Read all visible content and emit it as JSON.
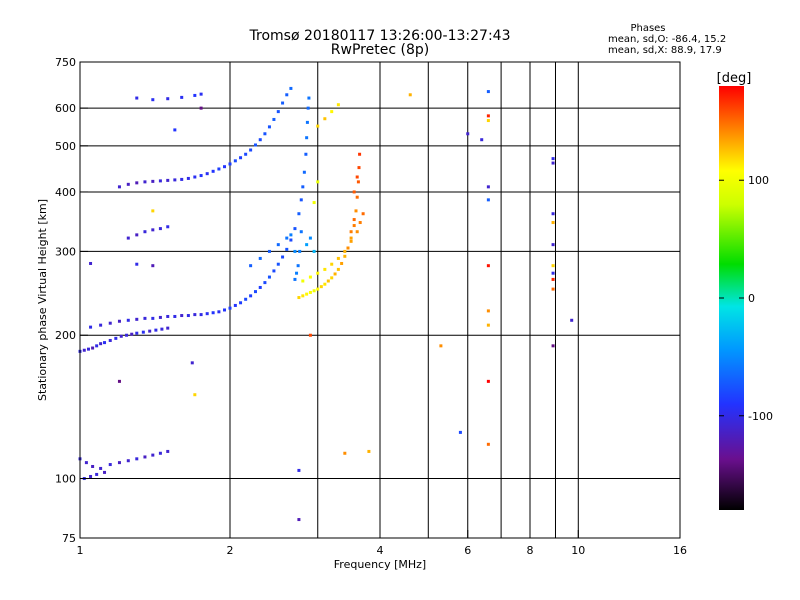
{
  "chart_data": {
    "type": "scatter",
    "title": "Tromsø 20180117 13:26:00-13:27:43",
    "subtitle": "RwPretec (8p)",
    "xlabel": "Frequency [MHz]",
    "ylabel": "Stationary phase Virtual Height [km]",
    "xscale": "log",
    "yscale": "log",
    "xlim": [
      1,
      16
    ],
    "ylim": [
      75,
      750
    ],
    "xticks": [
      {
        "value": 1,
        "label": "1"
      },
      {
        "value": 2,
        "label": "2"
      },
      {
        "value": 4,
        "label": "4"
      },
      {
        "value": 6,
        "label": "6"
      },
      {
        "value": 8,
        "label": "8"
      },
      {
        "value": 10,
        "label": "10"
      },
      {
        "value": 16,
        "label": "16"
      }
    ],
    "xgrid": [
      2,
      3,
      4,
      5,
      6,
      7,
      8,
      9,
      10
    ],
    "yticks": [
      {
        "value": 75,
        "label": "75"
      },
      {
        "value": 100,
        "label": "100"
      },
      {
        "value": 200,
        "label": "200"
      },
      {
        "value": 300,
        "label": "300"
      },
      {
        "value": 400,
        "label": "400"
      },
      {
        "value": 500,
        "label": "500"
      },
      {
        "value": 600,
        "label": "600"
      },
      {
        "value": 750,
        "label": "750"
      }
    ],
    "ygrid": [
      100,
      200,
      300,
      400,
      500,
      600
    ],
    "grid": true,
    "legend": {
      "title": "Phases",
      "line1": "mean, sd,O:  -86.4, 15.2",
      "line2": "mean, sd,X:   88.9, 17.9"
    },
    "colorbar": {
      "label": "[deg]",
      "min": -180,
      "max": 180,
      "ticks": [
        {
          "value": 100,
          "label": "100"
        },
        {
          "value": 0,
          "label": "0"
        },
        {
          "value": -100,
          "label": "-100"
        }
      ]
    },
    "series": [
      {
        "points": [
          [
            1.0,
            185,
            -100
          ],
          [
            1.02,
            186,
            -110
          ],
          [
            1.04,
            187,
            -105
          ],
          [
            1.06,
            188,
            -120
          ],
          [
            1.08,
            190,
            -100
          ],
          [
            1.1,
            192,
            -110
          ],
          [
            1.12,
            193,
            -95
          ],
          [
            1.15,
            195,
            -105
          ],
          [
            1.18,
            197,
            -100
          ],
          [
            1.21,
            199,
            -110
          ],
          [
            1.24,
            200,
            -105
          ],
          [
            1.27,
            201,
            -115
          ],
          [
            1.3,
            202,
            -100
          ],
          [
            1.34,
            203,
            -95
          ],
          [
            1.38,
            204,
            -110
          ],
          [
            1.42,
            205,
            -100
          ],
          [
            1.46,
            206,
            -105
          ],
          [
            1.5,
            207,
            -110
          ],
          [
            1.05,
            208,
            -100
          ],
          [
            1.1,
            210,
            -105
          ],
          [
            1.15,
            212,
            -110
          ],
          [
            1.2,
            214,
            -115
          ],
          [
            1.25,
            215,
            -100
          ],
          [
            1.3,
            216,
            -110
          ],
          [
            1.35,
            217,
            -105
          ],
          [
            1.4,
            217,
            -100
          ],
          [
            1.45,
            218,
            -110
          ],
          [
            1.5,
            219,
            -105
          ],
          [
            1.55,
            219,
            -100
          ],
          [
            1.6,
            220,
            -110
          ],
          [
            1.65,
            220,
            -100
          ],
          [
            1.7,
            221,
            -105
          ],
          [
            1.75,
            221,
            -100
          ],
          [
            1.8,
            222,
            -95
          ],
          [
            1.85,
            223,
            -90
          ],
          [
            1.9,
            224,
            -95
          ],
          [
            1.95,
            226,
            -90
          ],
          [
            2.0,
            228,
            -85
          ],
          [
            2.05,
            231,
            -90
          ],
          [
            2.1,
            234,
            -85
          ],
          [
            2.15,
            238,
            -80
          ],
          [
            2.2,
            242,
            -85
          ],
          [
            2.25,
            247,
            -80
          ],
          [
            2.3,
            252,
            -85
          ],
          [
            2.35,
            258,
            -80
          ],
          [
            2.4,
            265,
            -75
          ],
          [
            2.45,
            273,
            -80
          ],
          [
            2.5,
            282,
            -75
          ],
          [
            2.55,
            292,
            -80
          ],
          [
            2.6,
            303,
            -75
          ],
          [
            2.65,
            317,
            -80
          ],
          [
            2.7,
            335,
            -75
          ],
          [
            2.75,
            360,
            -70
          ],
          [
            2.78,
            385,
            -75
          ],
          [
            2.8,
            410,
            -70
          ],
          [
            2.82,
            440,
            -65
          ],
          [
            2.84,
            480,
            -70
          ],
          [
            2.85,
            520,
            -60
          ],
          [
            2.86,
            560,
            -60
          ],
          [
            2.87,
            600,
            -65
          ],
          [
            2.88,
            630,
            -60
          ],
          [
            2.78,
            330,
            -60
          ],
          [
            2.76,
            300,
            -55
          ],
          [
            2.74,
            280,
            -60
          ],
          [
            2.72,
            270,
            -55
          ],
          [
            2.7,
            262,
            -60
          ],
          [
            1.2,
            410,
            -110
          ],
          [
            1.25,
            415,
            -115
          ],
          [
            1.3,
            418,
            -120
          ],
          [
            1.35,
            420,
            -110
          ],
          [
            1.4,
            421,
            -115
          ],
          [
            1.45,
            422,
            -105
          ],
          [
            1.5,
            423,
            -110
          ],
          [
            1.55,
            424,
            -105
          ],
          [
            1.6,
            425,
            -100
          ],
          [
            1.65,
            427,
            -100
          ],
          [
            1.7,
            430,
            -95
          ],
          [
            1.75,
            433,
            -90
          ],
          [
            1.8,
            437,
            -95
          ],
          [
            1.85,
            442,
            -90
          ],
          [
            1.9,
            447,
            -85
          ],
          [
            1.95,
            452,
            -90
          ],
          [
            2.0,
            458,
            -85
          ],
          [
            2.05,
            465,
            -80
          ],
          [
            2.1,
            472,
            -85
          ],
          [
            2.15,
            480,
            -80
          ],
          [
            2.2,
            490,
            -80
          ],
          [
            2.25,
            502,
            -75
          ],
          [
            2.3,
            515,
            -80
          ],
          [
            2.35,
            530,
            -75
          ],
          [
            2.4,
            548,
            -75
          ],
          [
            2.45,
            568,
            -70
          ],
          [
            2.5,
            590,
            -75
          ],
          [
            2.55,
            615,
            -70
          ],
          [
            2.6,
            640,
            -70
          ],
          [
            2.65,
            660,
            -65
          ],
          [
            2.2,
            280,
            -70
          ],
          [
            2.3,
            290,
            -65
          ],
          [
            2.4,
            300,
            -70
          ],
          [
            2.5,
            310,
            -65
          ],
          [
            2.6,
            320,
            -60
          ],
          [
            2.65,
            325,
            -55
          ],
          [
            1.25,
            320,
            -110
          ],
          [
            1.3,
            325,
            -115
          ],
          [
            1.35,
            330,
            -105
          ],
          [
            1.4,
            333,
            -110
          ],
          [
            1.45,
            335,
            -105
          ],
          [
            1.5,
            338,
            -100
          ],
          [
            1.3,
            630,
            -100
          ],
          [
            1.4,
            625,
            -95
          ],
          [
            1.5,
            628,
            -100
          ],
          [
            1.6,
            632,
            -95
          ],
          [
            1.7,
            638,
            -90
          ],
          [
            1.75,
            642,
            -95
          ],
          [
            1.0,
            110,
            -105
          ],
          [
            1.03,
            108,
            -110
          ],
          [
            1.06,
            106,
            -115
          ],
          [
            1.1,
            105,
            -110
          ],
          [
            1.15,
            107,
            -105
          ],
          [
            1.2,
            108,
            -115
          ],
          [
            1.25,
            109,
            -110
          ],
          [
            1.3,
            110,
            -105
          ],
          [
            1.35,
            111,
            -115
          ],
          [
            1.4,
            112,
            -110
          ],
          [
            1.45,
            113,
            -105
          ],
          [
            1.5,
            114,
            -110
          ],
          [
            1.02,
            100,
            -100
          ],
          [
            1.05,
            101,
            -110
          ],
          [
            1.08,
            102,
            -105
          ],
          [
            1.12,
            103,
            -115
          ]
        ]
      },
      {
        "points": [
          [
            2.75,
            240,
            120
          ],
          [
            2.8,
            242,
            115
          ],
          [
            2.85,
            244,
            110
          ],
          [
            2.9,
            246,
            105
          ],
          [
            2.95,
            248,
            100
          ],
          [
            3.0,
            250,
            110
          ],
          [
            3.05,
            253,
            120
          ],
          [
            3.1,
            256,
            115
          ],
          [
            3.15,
            260,
            125
          ],
          [
            3.2,
            264,
            120
          ],
          [
            3.25,
            269,
            130
          ],
          [
            3.3,
            275,
            125
          ],
          [
            3.35,
            283,
            135
          ],
          [
            3.4,
            293,
            130
          ],
          [
            3.45,
            305,
            140
          ],
          [
            3.5,
            320,
            135
          ],
          [
            3.55,
            340,
            145
          ],
          [
            3.58,
            365,
            140
          ],
          [
            3.6,
            390,
            150
          ],
          [
            3.62,
            420,
            155
          ],
          [
            3.63,
            450,
            160
          ],
          [
            3.64,
            480,
            165
          ],
          [
            3.55,
            350,
            150
          ],
          [
            3.5,
            330,
            145
          ],
          [
            2.8,
            260,
            100
          ],
          [
            2.9,
            265,
            105
          ],
          [
            3.0,
            270,
            110
          ],
          [
            3.1,
            275,
            115
          ],
          [
            3.2,
            282,
            120
          ],
          [
            3.3,
            290,
            125
          ],
          [
            3.4,
            300,
            130
          ],
          [
            3.5,
            315,
            135
          ],
          [
            3.6,
            330,
            140
          ],
          [
            3.65,
            345,
            145
          ],
          [
            3.7,
            360,
            150
          ],
          [
            3.55,
            400,
            155
          ],
          [
            3.6,
            430,
            160
          ],
          [
            3.0,
            550,
            120
          ],
          [
            3.1,
            570,
            125
          ],
          [
            3.2,
            590,
            110
          ],
          [
            3.3,
            610,
            115
          ],
          [
            2.95,
            380,
            100
          ],
          [
            3.0,
            420,
            95
          ],
          [
            2.9,
            320,
            -50
          ],
          [
            2.85,
            310,
            -40
          ],
          [
            2.95,
            300,
            -30
          ]
        ]
      },
      {
        "points": [
          [
            4.6,
            640,
            130
          ],
          [
            5.3,
            190,
            140
          ],
          [
            5.8,
            125,
            -80
          ],
          [
            6.0,
            530,
            -110
          ],
          [
            6.4,
            515,
            -105
          ],
          [
            6.6,
            650,
            -70
          ],
          [
            6.6,
            578,
            170
          ],
          [
            6.6,
            565,
            120
          ],
          [
            6.6,
            410,
            -110
          ],
          [
            6.6,
            385,
            -70
          ],
          [
            6.6,
            280,
            175
          ],
          [
            6.6,
            225,
            140
          ],
          [
            6.6,
            160,
            180
          ],
          [
            6.6,
            118,
            150
          ],
          [
            6.6,
            210,
            130
          ],
          [
            8.9,
            470,
            -100
          ],
          [
            8.9,
            460,
            -110
          ],
          [
            8.9,
            360,
            -105
          ],
          [
            8.9,
            345,
            130
          ],
          [
            8.9,
            310,
            -110
          ],
          [
            8.9,
            280,
            120
          ],
          [
            8.9,
            270,
            -100
          ],
          [
            8.9,
            262,
            170
          ],
          [
            8.9,
            250,
            150
          ],
          [
            8.9,
            190,
            -140
          ],
          [
            9.7,
            215,
            -110
          ],
          [
            1.7,
            150,
            120
          ],
          [
            1.68,
            175,
            -110
          ],
          [
            1.4,
            280,
            -120
          ],
          [
            1.3,
            282,
            -100
          ],
          [
            1.05,
            283,
            -110
          ],
          [
            1.2,
            160,
            -140
          ],
          [
            2.75,
            104,
            -100
          ],
          [
            2.75,
            82,
            -120
          ],
          [
            3.4,
            113,
            140
          ],
          [
            3.8,
            114,
            130
          ],
          [
            1.55,
            540,
            -90
          ],
          [
            1.75,
            600,
            -140
          ],
          [
            1.4,
            365,
            120
          ],
          [
            2.7,
            300,
            -50
          ],
          [
            2.9,
            200,
            160
          ]
        ]
      }
    ]
  }
}
